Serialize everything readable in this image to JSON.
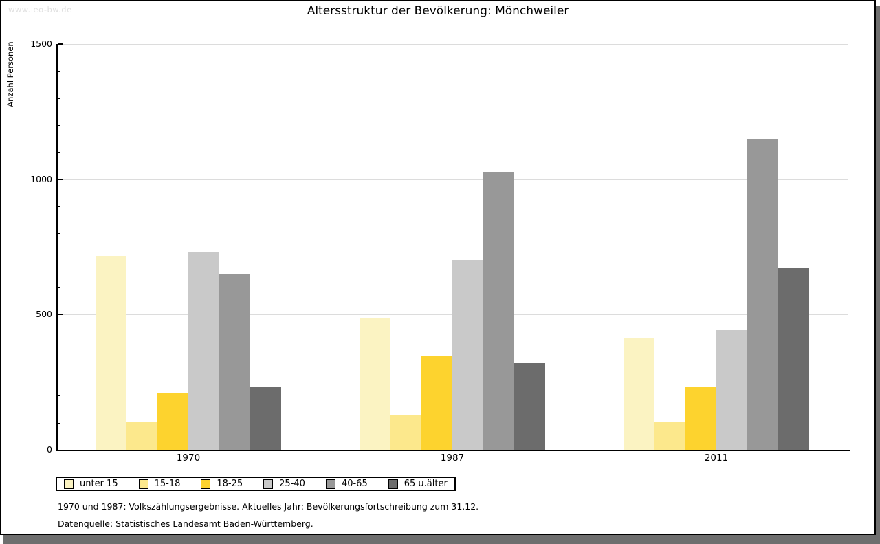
{
  "watermark": "www.leo-bw.de",
  "title": "Altersstruktur der Bevölkerung: Mönchweiler",
  "footer": {
    "line1": "1970 und 1987: Volkszählungsergebnisse. Aktuelles Jahr: Bevölkerungsfortschreibung zum 31.12.",
    "line2": "Datenquelle: Statistisches Landesamt Baden-Württemberg."
  },
  "chart_data": {
    "type": "bar",
    "title": "Altersstruktur der Bevölkerung: Mönchweiler",
    "xlabel": "",
    "ylabel": "Anzahl Personen",
    "categories": [
      "1970",
      "1987",
      "2011"
    ],
    "series": [
      {
        "name": "unter 15",
        "color": "#fbf3c2",
        "values": [
          718,
          486,
          414
        ]
      },
      {
        "name": "15-18",
        "color": "#fce88c",
        "values": [
          102,
          128,
          103
        ]
      },
      {
        "name": "18-25",
        "color": "#fdd32e",
        "values": [
          210,
          348,
          232
        ]
      },
      {
        "name": "25-40",
        "color": "#c9c9c9",
        "values": [
          730,
          702,
          442
        ]
      },
      {
        "name": "40-65",
        "color": "#989898",
        "values": [
          651,
          1028,
          1149
        ]
      },
      {
        "name": "65 u.älter",
        "color": "#6c6c6c",
        "values": [
          234,
          320,
          673
        ]
      }
    ],
    "ylim": [
      0,
      1500
    ],
    "yticks_major": [
      0,
      500,
      1000,
      1500
    ],
    "ytick_minor_step": 100,
    "grid": "horizontal gridlines at 500, 1000, 1500",
    "gridline_color": "#dcdcdc",
    "legend_position": "bottom-left"
  }
}
